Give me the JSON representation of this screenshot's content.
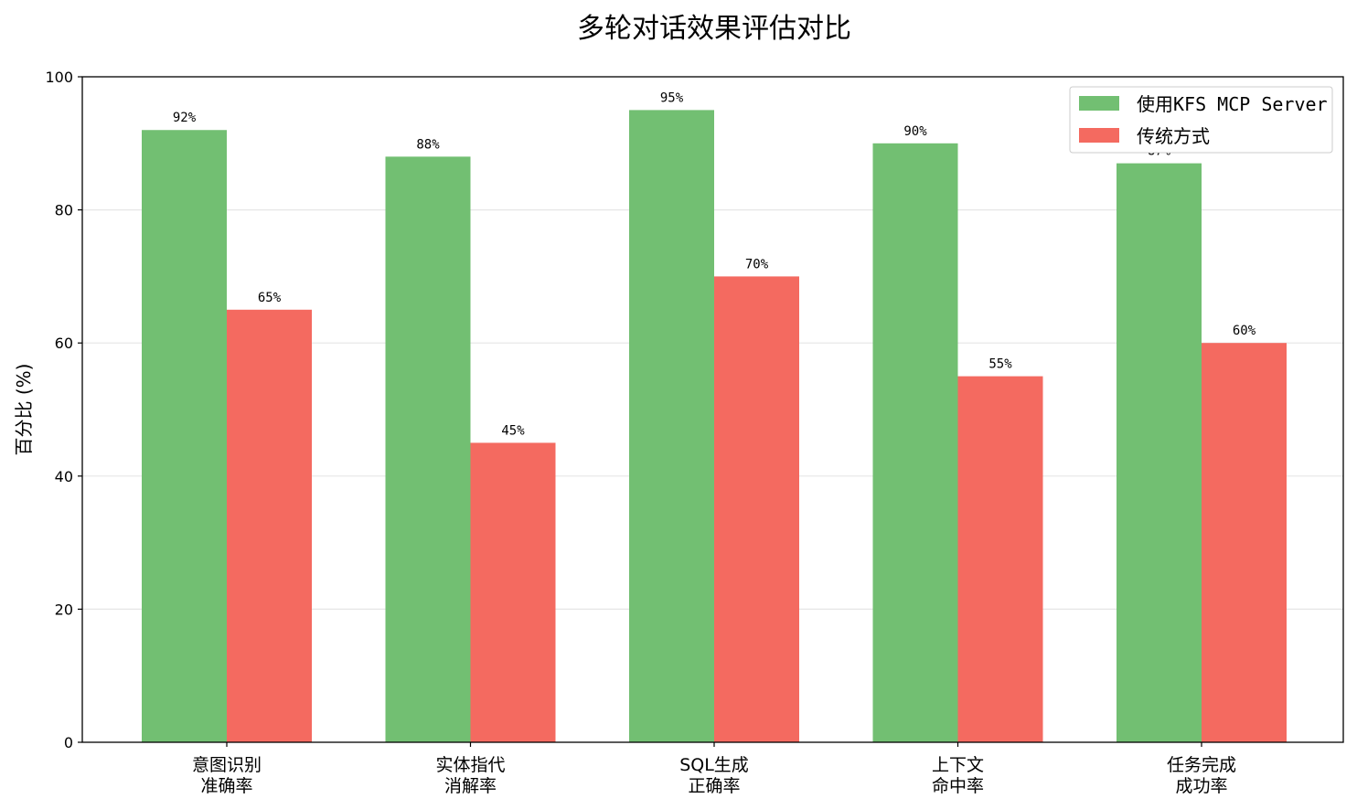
{
  "colors": {
    "series_1": "#72bf72",
    "series_2": "#f46a60",
    "grid": "#e6e6e6",
    "axis": "#000000"
  },
  "chart_data": {
    "type": "bar",
    "title": "多轮对话效果评估对比",
    "xlabel": "",
    "ylabel": "百分比 (%)",
    "ylim": [
      0,
      100
    ],
    "yticks": [
      0,
      20,
      40,
      60,
      80,
      100
    ],
    "grid": "y-only",
    "legend_position": "top-right",
    "categories": [
      [
        "意图识别",
        "准确率"
      ],
      [
        "实体指代",
        "消解率"
      ],
      [
        "SQL生成",
        "正确率"
      ],
      [
        "上下文",
        "命中率"
      ],
      [
        "任务完成",
        "成功率"
      ]
    ],
    "series": [
      {
        "name": "使用KFS MCP Server",
        "values": [
          92,
          88,
          95,
          90,
          87
        ],
        "labels": [
          "92%",
          "88%",
          "95%",
          "90%",
          "87%"
        ]
      },
      {
        "name": "传统方式",
        "values": [
          65,
          45,
          70,
          55,
          60
        ],
        "labels": [
          "65%",
          "45%",
          "70%",
          "55%",
          "60%"
        ]
      }
    ]
  }
}
